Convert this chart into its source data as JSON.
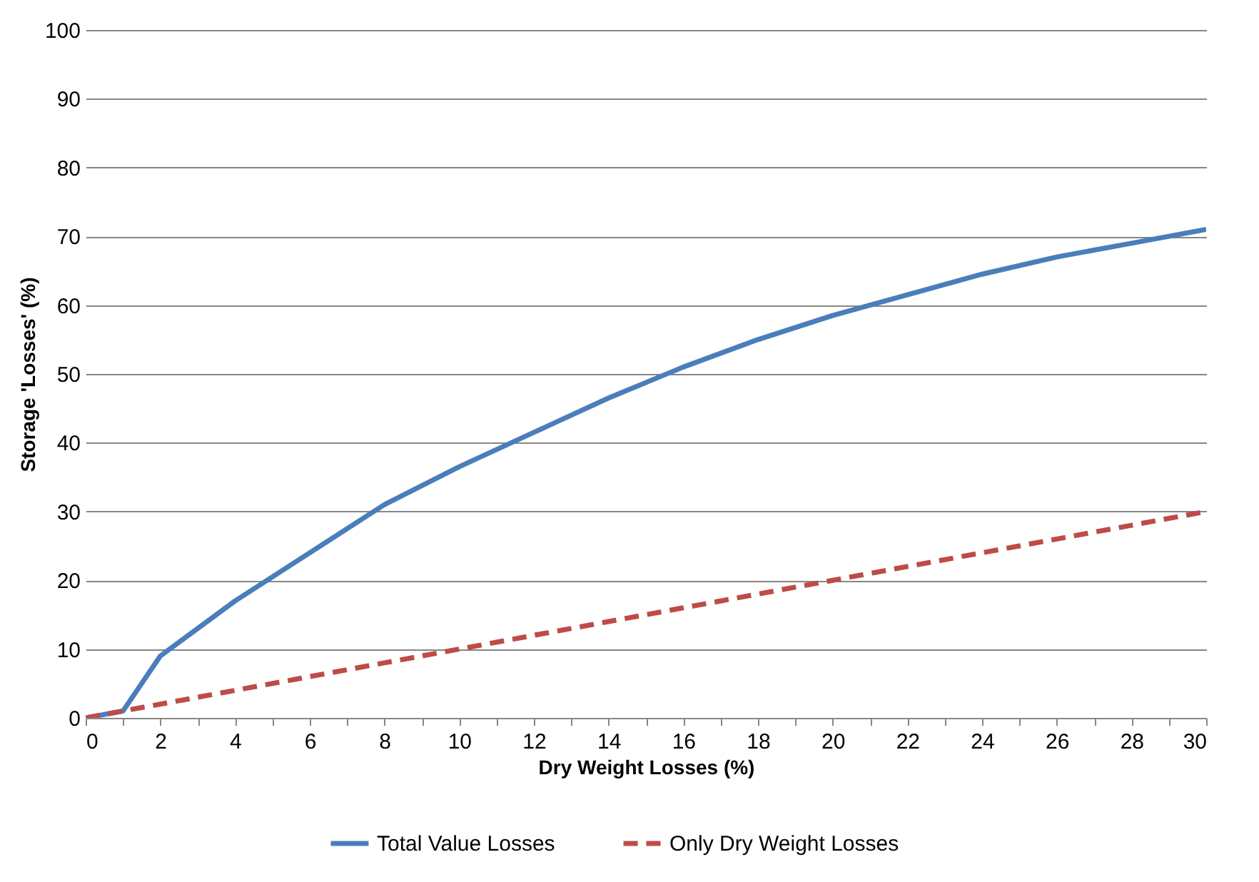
{
  "chart_data": {
    "type": "line",
    "xlabel": "Dry Weight Losses (%)",
    "ylabel": "Storage 'Losses' (%)",
    "x": [
      0,
      1,
      2,
      4,
      6,
      8,
      10,
      12,
      14,
      16,
      18,
      20,
      22,
      24,
      26,
      28,
      30
    ],
    "series": [
      {
        "name": "Total Value Losses",
        "color": "#4a7ebb",
        "line_style": "solid",
        "values": [
          0,
          1,
          9,
          17,
          24,
          31,
          36.5,
          41.5,
          46.5,
          51,
          55,
          58.5,
          61.5,
          64.5,
          67,
          69,
          71
        ]
      },
      {
        "name": "Only Dry Weight Losses",
        "color": "#be4b48",
        "line_style": "dashed",
        "values": [
          0,
          1,
          2,
          4,
          6,
          8,
          10,
          12,
          14,
          16,
          18,
          20,
          22,
          24,
          26,
          28,
          30
        ]
      }
    ],
    "xlim": [
      0,
      30
    ],
    "ylim": [
      0,
      100
    ],
    "xticks": [
      0,
      {
        "value": 1,
        "label": null
      },
      2,
      {
        "value": 3,
        "label": null
      },
      4,
      {
        "value": 5,
        "label": null
      },
      6,
      {
        "value": 7,
        "label": null
      },
      8,
      {
        "value": 9,
        "label": null
      },
      10,
      {
        "value": 11,
        "label": null
      },
      12,
      {
        "value": 13,
        "label": null
      },
      14,
      {
        "value": 15,
        "label": null
      },
      16,
      {
        "value": 17,
        "label": null
      },
      18,
      {
        "value": 19,
        "label": null
      },
      20,
      {
        "value": 21,
        "label": null
      },
      22,
      {
        "value": 23,
        "label": null
      },
      24,
      {
        "value": 25,
        "label": null
      },
      26,
      {
        "value": 27,
        "label": null
      },
      28,
      {
        "value": 29,
        "label": null
      },
      30
    ],
    "yticks": [
      0,
      10,
      20,
      30,
      40,
      50,
      60,
      70,
      80,
      90,
      100
    ],
    "grid": "y",
    "legend": "bottom",
    "marker": "none"
  }
}
